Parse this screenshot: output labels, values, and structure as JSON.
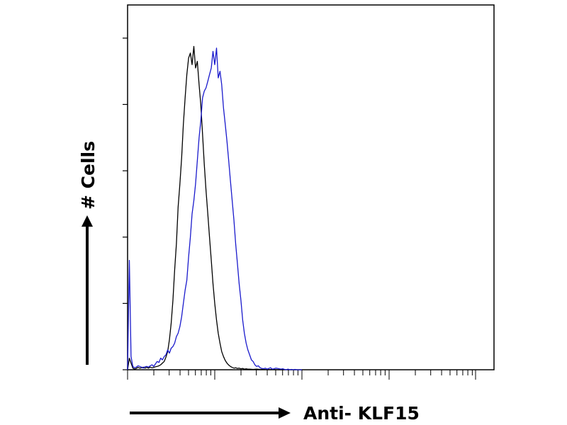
{
  "chart_data": {
    "type": "line",
    "title": "",
    "xlabel": "Anti- KLF15",
    "ylabel": "# Cells",
    "x_scale": "log",
    "x_decades": 4,
    "tick_labels_shown": false,
    "grid": false,
    "legend": "none",
    "series": [
      {
        "color": "#000000",
        "x": [
          0.0,
          0.02,
          0.04,
          0.06,
          0.08,
          0.1,
          0.12,
          0.14,
          0.16,
          0.18,
          0.2,
          0.22,
          0.24,
          0.26,
          0.28,
          0.3,
          0.32,
          0.34,
          0.36,
          0.38,
          0.4,
          0.42,
          0.44,
          0.46,
          0.48,
          0.5,
          0.52,
          0.54,
          0.56,
          0.58,
          0.6,
          0.62,
          0.64,
          0.66,
          0.68,
          0.7,
          0.72,
          0.74,
          0.76,
          0.78,
          0.8,
          0.82,
          0.84,
          0.86,
          0.88,
          0.9,
          0.92,
          0.94,
          0.96,
          0.98,
          1.0,
          1.02,
          1.04,
          1.06,
          1.08,
          1.1,
          1.12,
          1.14,
          1.16,
          1.18,
          1.2,
          1.22,
          1.24,
          1.26,
          1.28,
          1.3,
          1.32,
          1.34,
          1.36,
          1.38,
          1.4,
          1.44,
          1.48,
          1.52,
          1.56,
          1.6,
          1.66,
          1.72,
          1.8
        ],
        "y": [
          0.0,
          0.35,
          0.2,
          0.05,
          0.02,
          0.04,
          0.07,
          0.05,
          0.06,
          0.08,
          0.05,
          0.07,
          0.05,
          0.08,
          0.06,
          0.07,
          0.09,
          0.1,
          0.12,
          0.15,
          0.2,
          0.25,
          0.38,
          0.55,
          0.9,
          1.4,
          2.1,
          3.0,
          3.8,
          4.9,
          5.6,
          6.4,
          7.4,
          8.2,
          8.9,
          9.4,
          9.55,
          9.2,
          9.75,
          9.1,
          9.3,
          8.6,
          8.0,
          7.1,
          6.2,
          5.4,
          4.7,
          4.0,
          3.3,
          2.6,
          2.0,
          1.5,
          1.1,
          0.8,
          0.55,
          0.4,
          0.28,
          0.2,
          0.14,
          0.1,
          0.07,
          0.05,
          0.06,
          0.04,
          0.05,
          0.03,
          0.04,
          0.02,
          0.03,
          0.02,
          0.02,
          0.01,
          0.02,
          0.01,
          0.01,
          0.0,
          0.01,
          0.0,
          0.0
        ]
      },
      {
        "color": "#1a1acc",
        "x": [
          0.0,
          0.02,
          0.04,
          0.06,
          0.08,
          0.1,
          0.12,
          0.14,
          0.16,
          0.18,
          0.2,
          0.22,
          0.24,
          0.26,
          0.28,
          0.3,
          0.32,
          0.34,
          0.36,
          0.38,
          0.4,
          0.42,
          0.44,
          0.46,
          0.48,
          0.5,
          0.52,
          0.54,
          0.56,
          0.58,
          0.6,
          0.62,
          0.64,
          0.66,
          0.68,
          0.7,
          0.72,
          0.74,
          0.76,
          0.78,
          0.8,
          0.82,
          0.84,
          0.86,
          0.88,
          0.9,
          0.92,
          0.94,
          0.96,
          0.98,
          1.0,
          1.02,
          1.04,
          1.06,
          1.08,
          1.1,
          1.12,
          1.14,
          1.16,
          1.18,
          1.2,
          1.22,
          1.24,
          1.26,
          1.28,
          1.3,
          1.32,
          1.34,
          1.36,
          1.38,
          1.4,
          1.42,
          1.44,
          1.46,
          1.48,
          1.5,
          1.52,
          1.54,
          1.56,
          1.58,
          1.6,
          1.62,
          1.64,
          1.66,
          1.68,
          1.7,
          1.72,
          1.74,
          1.76,
          1.78,
          1.8,
          1.82,
          1.84,
          1.86,
          1.88,
          1.9,
          1.92,
          1.94,
          1.96,
          1.98,
          2.0
        ],
        "y": [
          0.0,
          3.3,
          0.4,
          0.1,
          0.06,
          0.08,
          0.12,
          0.1,
          0.08,
          0.05,
          0.09,
          0.1,
          0.08,
          0.12,
          0.15,
          0.1,
          0.18,
          0.25,
          0.22,
          0.35,
          0.3,
          0.4,
          0.45,
          0.6,
          0.5,
          0.65,
          0.7,
          0.8,
          1.0,
          1.1,
          1.3,
          1.6,
          2.0,
          2.4,
          2.7,
          3.4,
          4.0,
          4.7,
          5.1,
          5.6,
          6.3,
          7.0,
          7.5,
          8.2,
          8.4,
          8.5,
          8.7,
          8.9,
          9.1,
          9.6,
          9.2,
          9.7,
          8.8,
          9.0,
          8.6,
          7.9,
          7.4,
          6.9,
          6.3,
          5.7,
          5.1,
          4.5,
          3.8,
          3.2,
          2.6,
          2.1,
          1.5,
          1.1,
          0.8,
          0.6,
          0.45,
          0.3,
          0.25,
          0.15,
          0.1,
          0.12,
          0.06,
          0.04,
          0.03,
          0.05,
          0.02,
          0.04,
          0.06,
          0.02,
          0.03,
          0.05,
          0.04,
          0.03,
          0.02,
          0.03,
          0.01,
          0.0,
          0.02,
          0.0,
          0.01,
          0.0,
          0.01,
          0.0,
          0.0,
          0.0,
          0.0
        ]
      }
    ],
    "ylim": [
      0,
      11
    ]
  }
}
